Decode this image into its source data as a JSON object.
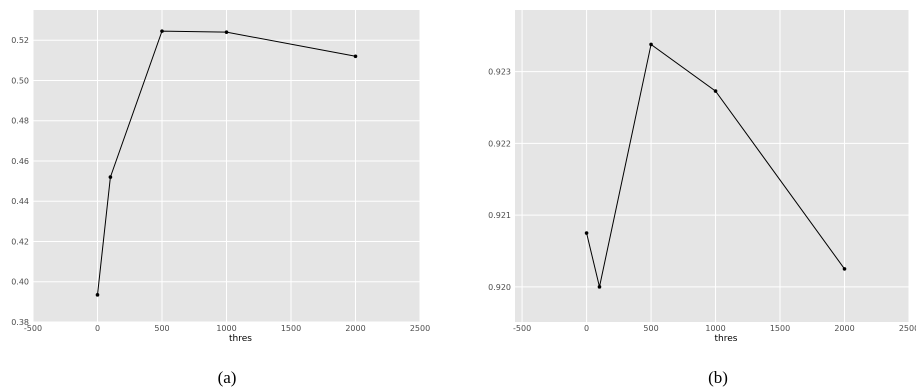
{
  "chart_data": [
    {
      "type": "line",
      "x_label": "thres",
      "caption": "(a)",
      "grid": true,
      "color": "#000000",
      "x": [
        0,
        100,
        500,
        1000,
        2000
      ],
      "values": [
        0.3935,
        0.452,
        0.5245,
        0.524,
        0.512
      ],
      "xlim": [
        -500,
        2500
      ],
      "xticks": [
        -500,
        0,
        500,
        1000,
        1500,
        2000,
        2500
      ],
      "ylim": [
        0.38,
        0.535
      ],
      "yticks": [
        0.38,
        {
          "value": 0.4,
          "label": "0.40"
        },
        0.42,
        0.44,
        0.46,
        0.48,
        {
          "value": 0.5,
          "label": "0.50"
        },
        0.52
      ]
    },
    {
      "type": "line",
      "x_label": "thres",
      "caption": "(b)",
      "grid": true,
      "color": "#000000",
      "x": [
        0,
        100,
        500,
        1000,
        2000
      ],
      "values": [
        0.92075,
        0.92,
        0.92338,
        0.92273,
        0.92025
      ],
      "xlim": [
        -555,
        2500
      ],
      "xticks": [
        -500,
        0,
        500,
        1000,
        1500,
        2000,
        2500
      ],
      "ylim": [
        0.91951,
        0.92386
      ],
      "yticks": [
        {
          "value": 0.92,
          "label": "0.920"
        },
        0.921,
        0.922,
        0.923
      ]
    }
  ]
}
